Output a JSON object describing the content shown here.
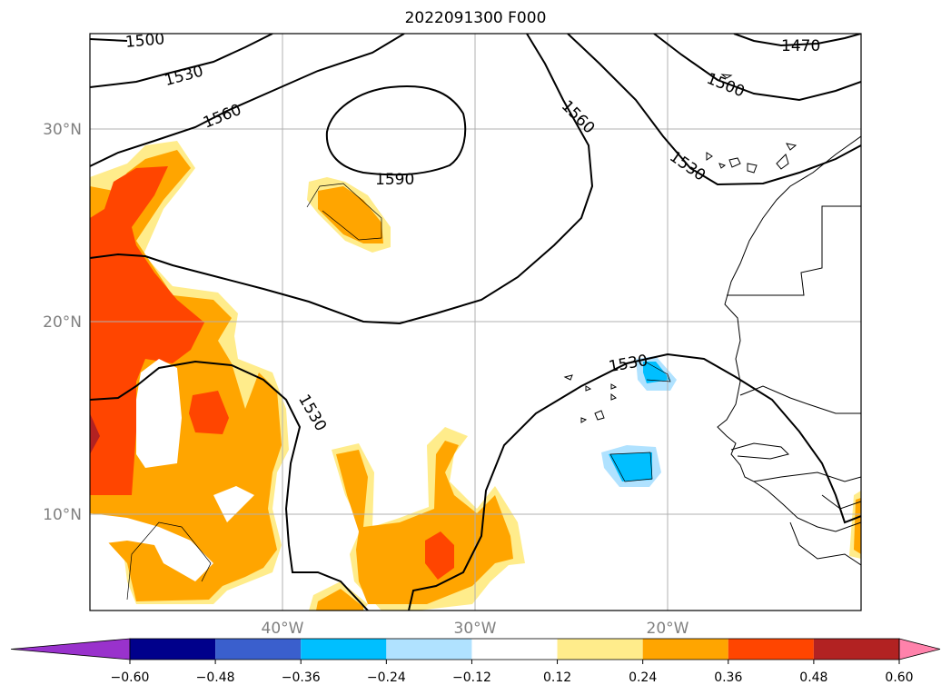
{
  "title": "2022091300 F000",
  "lat_labels": [
    "30°N",
    "20°N",
    "10°N"
  ],
  "lon_labels": [
    "40°W",
    "30°W",
    "20°W"
  ],
  "contour_labels": [
    "1500",
    "1530",
    "1560",
    "1590",
    "1560",
    "1530",
    "1500",
    "1470",
    "1530",
    "1530"
  ],
  "colorbar": {
    "ticks": [
      "−0.60",
      "−0.48",
      "−0.36",
      "−0.24",
      "−0.12",
      "0.12",
      "0.24",
      "0.36",
      "0.48",
      "0.60"
    ],
    "colors": [
      "#9932cc",
      "#00008b",
      "#3a5fcd",
      "#00bfff",
      "#b0e2ff",
      "#ffffff",
      "#ffec8b",
      "#ffa500",
      "#ff4500",
      "#b22222",
      "#ff82ab"
    ]
  },
  "colors": {
    "yellow": "#ffec8b",
    "orange": "#ffa500",
    "redorange": "#ff4500",
    "darkred": "#b22222",
    "cyan": "#00bfff",
    "lightblue": "#b0e2ff",
    "grid": "#b0b0b0"
  }
}
